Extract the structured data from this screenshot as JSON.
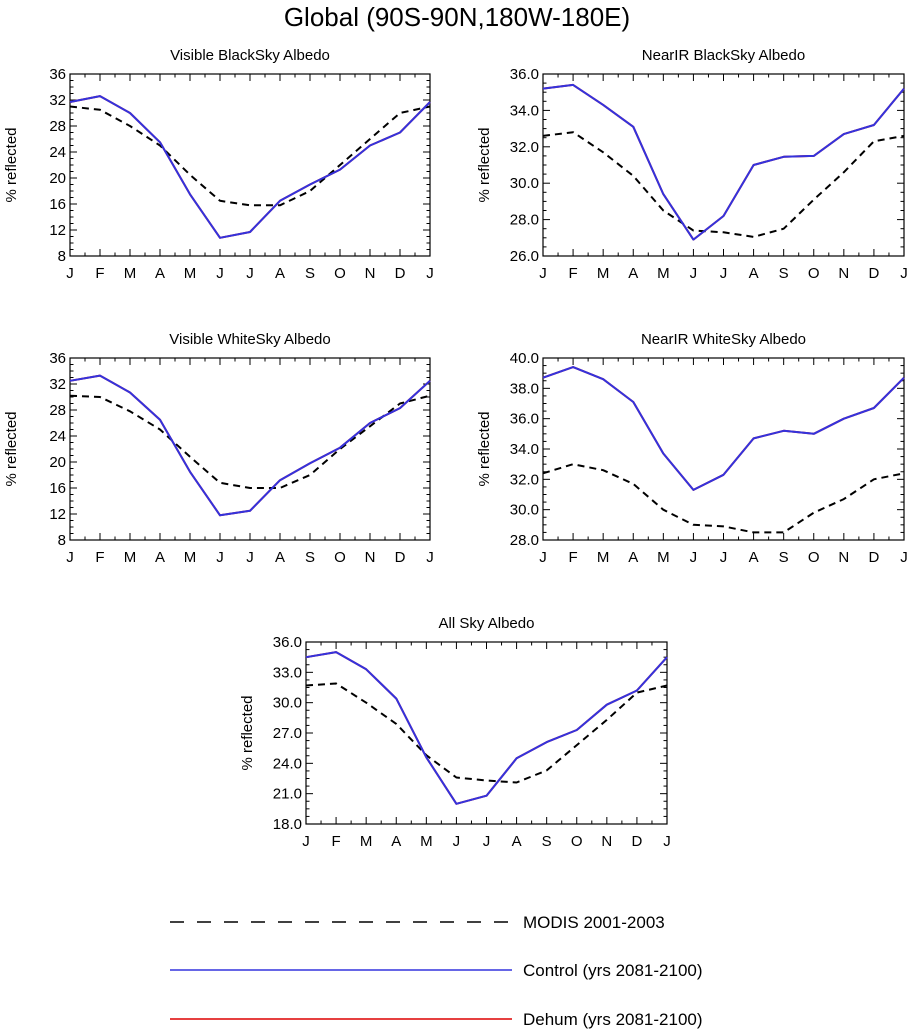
{
  "title": "Global (90S-90N,180W-180E)",
  "colors": {
    "modis": "#000000",
    "control": "#3333dd",
    "dehum": "#dd0000"
  },
  "legend": [
    {
      "label": "MODIS 2001-2003",
      "style": "dashed",
      "color": "#000000"
    },
    {
      "label": "Control (yrs 2081-2100)",
      "style": "solid",
      "color": "#3333dd"
    },
    {
      "label": "Dehum (yrs 2081-2100)",
      "style": "solid",
      "color": "#dd0000"
    }
  ],
  "chart_data": [
    {
      "type": "line",
      "title": "Visible BlackSky Albedo",
      "ylabel": "% reflected",
      "categories": [
        "J",
        "F",
        "M",
        "A",
        "M",
        "J",
        "J",
        "A",
        "S",
        "O",
        "N",
        "D",
        "J"
      ],
      "ylim": [
        8,
        36
      ],
      "yticks": [
        "8",
        "12",
        "16",
        "20",
        "24",
        "28",
        "32",
        "36"
      ],
      "series": [
        {
          "name": "MODIS 2001-2003",
          "values": [
            31.0,
            30.5,
            28.0,
            25.0,
            20.5,
            16.5,
            15.8,
            15.8,
            18.0,
            22.0,
            26.0,
            30.0,
            31.0
          ]
        },
        {
          "name": "Control (yrs 2081-2100)",
          "values": [
            31.7,
            32.6,
            30.0,
            25.5,
            17.5,
            10.8,
            11.7,
            16.5,
            19.0,
            21.3,
            25.0,
            27.0,
            31.7
          ]
        },
        {
          "name": "Dehum (yrs 2081-2100)",
          "values": [
            31.7,
            32.6,
            30.0,
            25.5,
            17.5,
            10.8,
            11.7,
            16.5,
            19.0,
            21.3,
            25.0,
            27.0,
            31.7
          ]
        }
      ]
    },
    {
      "type": "line",
      "title": "NearIR BlackSky Albedo",
      "ylabel": "% reflected",
      "categories": [
        "J",
        "F",
        "M",
        "A",
        "M",
        "J",
        "J",
        "A",
        "S",
        "O",
        "N",
        "D",
        "J"
      ],
      "ylim": [
        26,
        36
      ],
      "yticks": [
        "26.0",
        "28.0",
        "30.0",
        "32.0",
        "34.0",
        "36.0"
      ],
      "series": [
        {
          "name": "MODIS 2001-2003",
          "values": [
            32.6,
            32.8,
            31.7,
            30.4,
            28.5,
            27.4,
            27.3,
            27.05,
            27.5,
            29.1,
            30.6,
            32.3,
            32.6
          ]
        },
        {
          "name": "Control (yrs 2081-2100)",
          "values": [
            35.2,
            35.4,
            34.3,
            33.1,
            29.4,
            26.9,
            28.2,
            31.0,
            31.45,
            31.5,
            32.7,
            33.2,
            35.2
          ]
        },
        {
          "name": "Dehum (yrs 2081-2100)",
          "values": [
            35.2,
            35.4,
            34.3,
            33.1,
            29.4,
            26.9,
            28.2,
            31.0,
            31.45,
            31.5,
            32.7,
            33.2,
            35.2
          ]
        }
      ]
    },
    {
      "type": "line",
      "title": "Visible WhiteSky Albedo",
      "ylabel": "% reflected",
      "categories": [
        "J",
        "F",
        "M",
        "A",
        "M",
        "J",
        "J",
        "A",
        "S",
        "O",
        "N",
        "D",
        "J"
      ],
      "ylim": [
        8,
        36
      ],
      "yticks": [
        "8",
        "12",
        "16",
        "20",
        "24",
        "28",
        "32",
        "36"
      ],
      "series": [
        {
          "name": "MODIS 2001-2003",
          "values": [
            30.2,
            30.0,
            27.8,
            25.0,
            20.8,
            16.8,
            16.0,
            16.0,
            18.0,
            22.0,
            25.5,
            29.0,
            30.2
          ]
        },
        {
          "name": "Control (yrs 2081-2100)",
          "values": [
            32.5,
            33.3,
            30.7,
            26.5,
            18.5,
            11.8,
            12.5,
            17.2,
            19.8,
            22.2,
            26.0,
            28.3,
            32.5
          ]
        },
        {
          "name": "Dehum (yrs 2081-2100)",
          "values": [
            32.5,
            33.3,
            30.7,
            26.5,
            18.5,
            11.8,
            12.5,
            17.2,
            19.8,
            22.2,
            26.0,
            28.3,
            32.5
          ]
        }
      ]
    },
    {
      "type": "line",
      "title": "NearIR WhiteSky Albedo",
      "ylabel": "% reflected",
      "categories": [
        "J",
        "F",
        "M",
        "A",
        "M",
        "J",
        "J",
        "A",
        "S",
        "O",
        "N",
        "D",
        "J"
      ],
      "ylim": [
        28,
        40
      ],
      "yticks": [
        "28.0",
        "30.0",
        "32.0",
        "34.0",
        "36.0",
        "38.0",
        "40.0"
      ],
      "series": [
        {
          "name": "MODIS 2001-2003",
          "values": [
            32.4,
            33.0,
            32.6,
            31.7,
            30.0,
            29.0,
            28.9,
            28.5,
            28.5,
            29.8,
            30.7,
            32.0,
            32.4
          ]
        },
        {
          "name": "Control (yrs 2081-2100)",
          "values": [
            38.7,
            39.4,
            38.6,
            37.1,
            33.7,
            31.3,
            32.3,
            34.7,
            35.2,
            35.0,
            36.0,
            36.7,
            38.7
          ]
        },
        {
          "name": "Dehum (yrs 2081-2100)",
          "values": [
            38.7,
            39.4,
            38.6,
            37.1,
            33.7,
            31.3,
            32.3,
            34.7,
            35.2,
            35.0,
            36.0,
            36.7,
            38.7
          ]
        }
      ]
    },
    {
      "type": "line",
      "title": "All Sky Albedo",
      "ylabel": "% reflected",
      "categories": [
        "J",
        "F",
        "M",
        "A",
        "M",
        "J",
        "J",
        "A",
        "S",
        "O",
        "N",
        "D",
        "J"
      ],
      "ylim": [
        18,
        36
      ],
      "yticks": [
        "18.0",
        "21.0",
        "24.0",
        "27.0",
        "30.0",
        "33.0",
        "36.0"
      ],
      "series": [
        {
          "name": "MODIS 2001-2003",
          "values": [
            31.7,
            31.9,
            30.0,
            27.9,
            24.8,
            22.6,
            22.3,
            22.1,
            23.3,
            25.8,
            28.3,
            31.0,
            31.7
          ]
        },
        {
          "name": "Control (yrs 2081-2100)",
          "values": [
            34.5,
            35.0,
            33.3,
            30.4,
            24.6,
            20.0,
            20.8,
            24.5,
            26.1,
            27.3,
            29.8,
            31.2,
            34.5
          ]
        },
        {
          "name": "Dehum (yrs 2081-2100)",
          "values": [
            34.5,
            35.0,
            33.3,
            30.4,
            24.6,
            20.0,
            20.8,
            24.5,
            26.1,
            27.3,
            29.8,
            31.2,
            34.5
          ]
        }
      ]
    }
  ]
}
